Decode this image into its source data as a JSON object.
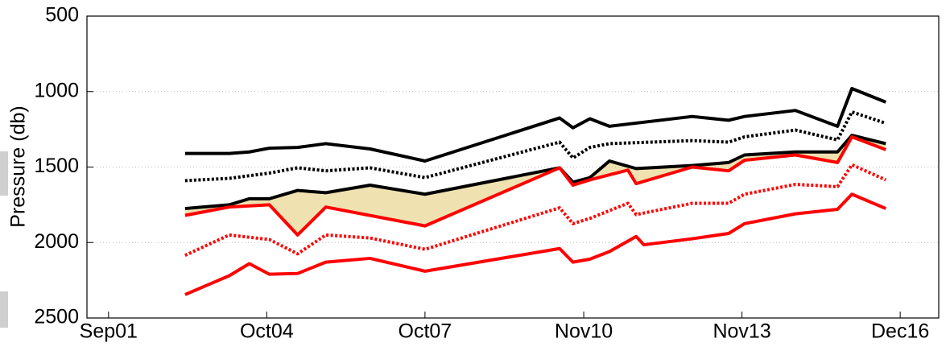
{
  "chart_data": {
    "type": "line",
    "y_label": "Pressure (db)",
    "xlim": [
      2001.25,
      2017.83
    ],
    "xticks": [
      {
        "value": 2001.67,
        "label": "Sep01"
      },
      {
        "value": 2004.75,
        "label": "Oct04"
      },
      {
        "value": 2007.83,
        "label": "Oct07"
      },
      {
        "value": 2010.92,
        "label": "Nov10"
      },
      {
        "value": 2014.0,
        "label": "Nov13"
      },
      {
        "value": 2017.08,
        "label": "Dec16"
      }
    ],
    "ylim": [
      2500,
      500
    ],
    "y_inverted": true,
    "yticks": [
      500,
      1000,
      1500,
      2000,
      2500
    ],
    "grid": true,
    "fill_color": "#efe2b0",
    "series": [
      {
        "color": "#000000",
        "dash": "solid",
        "x": [
          2003.16,
          2004.02,
          2004.41,
          2004.8,
          2005.35,
          2005.9,
          2006.76,
          2007.83,
          2010.45,
          2010.71,
          2011.04,
          2011.42,
          2013.03,
          2013.74,
          2014.05,
          2015.04,
          2015.86,
          2016.14,
          2016.8
        ],
        "values": [
          1410,
          1410,
          1400,
          1375,
          1370,
          1345,
          1380,
          1460,
          1175,
          1240,
          1180,
          1230,
          1165,
          1190,
          1165,
          1125,
          1230,
          980,
          1070
        ]
      },
      {
        "color": "#000000",
        "dash": "dotted",
        "x": [
          2003.16,
          2004.02,
          2004.8,
          2005.35,
          2005.9,
          2006.76,
          2007.83,
          2010.45,
          2010.71,
          2011.04,
          2011.42,
          2013.03,
          2013.74,
          2014.05,
          2015.04,
          2015.86,
          2016.14,
          2016.8
        ],
        "values": [
          1590,
          1575,
          1540,
          1505,
          1525,
          1505,
          1570,
          1335,
          1440,
          1370,
          1345,
          1325,
          1335,
          1300,
          1255,
          1320,
          1135,
          1210
        ]
      },
      {
        "color": "#000000",
        "dash": "solid",
        "x": [
          2003.16,
          2004.02,
          2004.41,
          2004.8,
          2005.35,
          2005.9,
          2006.76,
          2007.83,
          2010.45,
          2010.71,
          2011.04,
          2011.42,
          2011.94,
          2013.03,
          2013.74,
          2014.05,
          2015.04,
          2015.86,
          2016.14,
          2016.8
        ],
        "values": [
          1775,
          1750,
          1710,
          1710,
          1655,
          1670,
          1620,
          1680,
          1505,
          1600,
          1570,
          1460,
          1510,
          1490,
          1470,
          1420,
          1400,
          1400,
          1290,
          1345
        ]
      },
      {
        "color": "#ff0000",
        "dash": "solid",
        "x": [
          2003.16,
          2004.02,
          2004.8,
          2005.35,
          2005.9,
          2007.83,
          2010.45,
          2010.71,
          2011.04,
          2011.78,
          2011.94,
          2013.03,
          2013.74,
          2014.05,
          2015.04,
          2015.86,
          2016.14,
          2016.8
        ],
        "values": [
          1820,
          1765,
          1750,
          1950,
          1765,
          1890,
          1505,
          1620,
          1585,
          1520,
          1610,
          1500,
          1525,
          1455,
          1420,
          1470,
          1300,
          1385
        ]
      },
      {
        "color": "#ff0000",
        "dash": "dotted",
        "x": [
          2003.16,
          2004.02,
          2004.8,
          2005.35,
          2005.9,
          2006.76,
          2007.83,
          2010.45,
          2010.71,
          2011.04,
          2011.78,
          2011.94,
          2013.03,
          2013.74,
          2014.05,
          2015.04,
          2015.86,
          2016.14,
          2016.8
        ],
        "values": [
          2085,
          1950,
          1980,
          2075,
          1950,
          1970,
          2045,
          1770,
          1875,
          1840,
          1740,
          1815,
          1740,
          1740,
          1680,
          1615,
          1630,
          1485,
          1585
        ]
      },
      {
        "color": "#ff0000",
        "dash": "solid",
        "x": [
          2003.16,
          2004.02,
          2004.41,
          2004.8,
          2005.35,
          2005.9,
          2006.76,
          2007.83,
          2010.45,
          2010.71,
          2011.04,
          2011.42,
          2011.94,
          2012.09,
          2013.03,
          2013.74,
          2014.05,
          2015.04,
          2015.86,
          2016.14,
          2016.8
        ],
        "values": [
          2345,
          2220,
          2140,
          2210,
          2205,
          2130,
          2105,
          2190,
          2040,
          2130,
          2110,
          2060,
          1960,
          2015,
          1975,
          1940,
          1875,
          1810,
          1780,
          1680,
          1775
        ]
      }
    ]
  }
}
